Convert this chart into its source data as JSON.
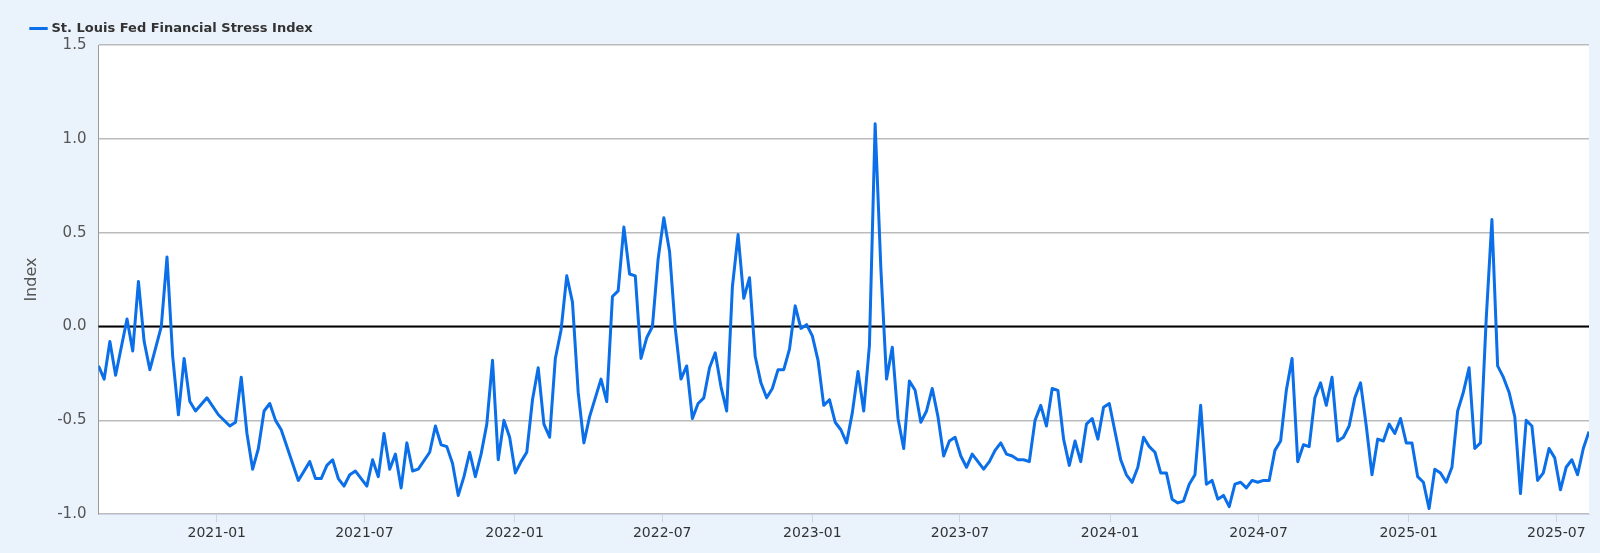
{
  "chart_data": {
    "type": "line",
    "ylabel": "Index",
    "xlim": [
      "2020-08-09",
      "2025-08-10"
    ],
    "xticks": [
      "2021-01",
      "2021-07",
      "2022-01",
      "2022-07",
      "2023-01",
      "2023-07",
      "2024-01",
      "2024-07",
      "2025-01",
      "2025-07"
    ],
    "ylim": [
      -1.0,
      1.5
    ],
    "yticks": [
      {
        "value": -1,
        "label": "-1.0"
      },
      -0.5,
      {
        "value": 0,
        "label": "0.0"
      },
      0.5,
      {
        "value": 1,
        "label": "1.0"
      },
      1.5
    ],
    "grid": "y",
    "legend": "top left",
    "marker": "none",
    "line_style": "solid",
    "ref_lines": [
      {
        "axis": "y",
        "value": 0,
        "color": "#000000"
      }
    ],
    "x": [
      "2020-08-09",
      "2020-08-16",
      "2020-08-23",
      "2020-08-30",
      "2020-09-13",
      "2020-09-20",
      "2020-09-27",
      "2020-10-04",
      "2020-10-11",
      "2020-10-25",
      "2020-11-01",
      "2020-11-08",
      "2020-11-15",
      "2020-11-22",
      "2020-11-29",
      "2020-12-06",
      "2020-12-20",
      "2021-01-03",
      "2021-01-17",
      "2021-01-24",
      "2021-01-31",
      "2021-02-07",
      "2021-02-14",
      "2021-02-21",
      "2021-02-28",
      "2021-03-07",
      "2021-03-14",
      "2021-03-21",
      "2021-04-11",
      "2021-04-25",
      "2021-05-02",
      "2021-05-09",
      "2021-05-16",
      "2021-05-23",
      "2021-05-30",
      "2021-06-06",
      "2021-06-13",
      "2021-06-20",
      "2021-07-04",
      "2021-07-11",
      "2021-07-18",
      "2021-07-25",
      "2021-08-01",
      "2021-08-08",
      "2021-08-15",
      "2021-08-22",
      "2021-08-29",
      "2021-09-05",
      "2021-09-19",
      "2021-09-26",
      "2021-10-03",
      "2021-10-10",
      "2021-10-17",
      "2021-10-24",
      "2021-10-31",
      "2021-11-07",
      "2021-11-14",
      "2021-11-21",
      "2021-11-28",
      "2021-12-05",
      "2021-12-12",
      "2021-12-19",
      "2021-12-26",
      "2022-01-02",
      "2022-01-09",
      "2022-01-16",
      "2022-01-23",
      "2022-01-30",
      "2022-02-06",
      "2022-02-13",
      "2022-02-20",
      "2022-02-27",
      "2022-03-06",
      "2022-03-13",
      "2022-03-20",
      "2022-03-27",
      "2022-04-03",
      "2022-04-17",
      "2022-04-24",
      "2022-05-01",
      "2022-05-08",
      "2022-05-15",
      "2022-05-22",
      "2022-05-29",
      "2022-06-05",
      "2022-06-12",
      "2022-06-19",
      "2022-06-26",
      "2022-07-03",
      "2022-07-10",
      "2022-07-17",
      "2022-07-24",
      "2022-07-31",
      "2022-08-07",
      "2022-08-14",
      "2022-08-21",
      "2022-08-28",
      "2022-09-04",
      "2022-09-11",
      "2022-09-18",
      "2022-09-25",
      "2022-10-02",
      "2022-10-09",
      "2022-10-16",
      "2022-10-23",
      "2022-10-30",
      "2022-11-06",
      "2022-11-13",
      "2022-11-20",
      "2022-11-27",
      "2022-12-04",
      "2022-12-11",
      "2022-12-18",
      "2022-12-25",
      "2023-01-01",
      "2023-01-08",
      "2023-01-15",
      "2023-01-22",
      "2023-01-29",
      "2023-02-05",
      "2023-02-12",
      "2023-02-19",
      "2023-02-26",
      "2023-03-05",
      "2023-03-12",
      "2023-03-19",
      "2023-03-26",
      "2023-04-02",
      "2023-04-09",
      "2023-04-16",
      "2023-04-23",
      "2023-04-30",
      "2023-05-07",
      "2023-05-14",
      "2023-05-21",
      "2023-05-28",
      "2023-06-04",
      "2023-06-11",
      "2023-06-18",
      "2023-06-25",
      "2023-07-02",
      "2023-07-09",
      "2023-07-16",
      "2023-07-23",
      "2023-07-30",
      "2023-08-06",
      "2023-08-13",
      "2023-08-20",
      "2023-08-27",
      "2023-09-03",
      "2023-09-10",
      "2023-09-17",
      "2023-09-24",
      "2023-10-01",
      "2023-10-08",
      "2023-10-15",
      "2023-10-22",
      "2023-10-29",
      "2023-11-05",
      "2023-11-12",
      "2023-11-19",
      "2023-11-26",
      "2023-12-03",
      "2023-12-10",
      "2023-12-17",
      "2023-12-24",
      "2023-12-31",
      "2024-01-14",
      "2024-01-21",
      "2024-01-28",
      "2024-02-04",
      "2024-02-11",
      "2024-02-18",
      "2024-02-25",
      "2024-03-03",
      "2024-03-10",
      "2024-03-17",
      "2024-03-24",
      "2024-03-31",
      "2024-04-07",
      "2024-04-14",
      "2024-04-21",
      "2024-04-28",
      "2024-05-05",
      "2024-05-12",
      "2024-05-19",
      "2024-05-26",
      "2024-06-02",
      "2024-06-09",
      "2024-06-16",
      "2024-06-23",
      "2024-06-30",
      "2024-07-07",
      "2024-07-14",
      "2024-07-21",
      "2024-07-28",
      "2024-08-04",
      "2024-08-11",
      "2024-08-18",
      "2024-08-25",
      "2024-09-01",
      "2024-09-08",
      "2024-09-15",
      "2024-09-22",
      "2024-09-29",
      "2024-10-06",
      "2024-10-13",
      "2024-10-20",
      "2024-10-27",
      "2024-11-03",
      "2024-11-10",
      "2024-11-17",
      "2024-11-24",
      "2024-12-01",
      "2024-12-08",
      "2024-12-15",
      "2024-12-22",
      "2024-12-29",
      "2025-01-05",
      "2025-01-12",
      "2025-01-19",
      "2025-01-26",
      "2025-02-02",
      "2025-02-09",
      "2025-02-16",
      "2025-02-23",
      "2025-03-02",
      "2025-03-09",
      "2025-03-16",
      "2025-03-23",
      "2025-03-30",
      "2025-04-06",
      "2025-04-13",
      "2025-04-20",
      "2025-04-27",
      "2025-05-04",
      "2025-05-11",
      "2025-05-18",
      "2025-05-25",
      "2025-06-01",
      "2025-06-08",
      "2025-06-15",
      "2025-06-22",
      "2025-06-29",
      "2025-07-06",
      "2025-07-13",
      "2025-07-20",
      "2025-07-27",
      "2025-08-03",
      "2025-08-10"
    ],
    "series": [
      {
        "name": "St. Louis Fed Financial Stress Index",
        "color": "#0a6fe8",
        "values": [
          -0.21,
          -0.28,
          -0.08,
          -0.26,
          0.04,
          -0.13,
          0.24,
          -0.08,
          -0.23,
          0.0,
          0.37,
          -0.16,
          -0.47,
          -0.17,
          -0.4,
          -0.45,
          -0.38,
          -0.47,
          -0.53,
          -0.51,
          -0.27,
          -0.57,
          -0.76,
          -0.65,
          -0.45,
          -0.41,
          -0.5,
          -0.55,
          -0.82,
          -0.72,
          -0.81,
          -0.81,
          -0.74,
          -0.71,
          -0.81,
          -0.85,
          -0.79,
          -0.77,
          -0.85,
          -0.71,
          -0.8,
          -0.57,
          -0.76,
          -0.68,
          -0.86,
          -0.62,
          -0.77,
          -0.76,
          -0.67,
          -0.53,
          -0.63,
          -0.64,
          -0.73,
          -0.9,
          -0.8,
          -0.67,
          -0.8,
          -0.68,
          -0.52,
          -0.18,
          -0.71,
          -0.5,
          -0.59,
          -0.78,
          -0.72,
          -0.67,
          -0.39,
          -0.22,
          -0.52,
          -0.59,
          -0.17,
          -0.02,
          0.27,
          0.13,
          -0.35,
          -0.62,
          -0.48,
          -0.28,
          -0.4,
          0.16,
          0.19,
          0.53,
          0.28,
          0.27,
          -0.17,
          -0.06,
          0.0,
          0.36,
          0.58,
          0.4,
          -0.01,
          -0.28,
          -0.21,
          -0.49,
          -0.41,
          -0.38,
          -0.22,
          -0.14,
          -0.32,
          -0.45,
          0.21,
          0.49,
          0.15,
          0.26,
          -0.16,
          -0.3,
          -0.38,
          -0.33,
          -0.23,
          -0.23,
          -0.12,
          0.11,
          -0.01,
          0.01,
          -0.05,
          -0.18,
          -0.42,
          -0.39,
          -0.51,
          -0.55,
          -0.62,
          -0.46,
          -0.24,
          -0.45,
          -0.1,
          1.08,
          0.31,
          -0.28,
          -0.11,
          -0.49,
          -0.65,
          -0.29,
          -0.34,
          -0.51,
          -0.45,
          -0.33,
          -0.48,
          -0.69,
          -0.61,
          -0.59,
          -0.69,
          -0.75,
          -0.68,
          -0.72,
          -0.76,
          -0.72,
          -0.66,
          -0.62,
          -0.68,
          -0.69,
          -0.71,
          -0.71,
          -0.72,
          -0.5,
          -0.42,
          -0.53,
          -0.33,
          -0.34,
          -0.6,
          -0.74,
          -0.61,
          -0.72,
          -0.52,
          -0.49,
          -0.6,
          -0.43,
          -0.41,
          -0.71,
          -0.79,
          -0.83,
          -0.75,
          -0.59,
          -0.64,
          -0.67,
          -0.78,
          -0.78,
          -0.92,
          -0.94,
          -0.93,
          -0.84,
          -0.79,
          -0.42,
          -0.84,
          -0.82,
          -0.92,
          -0.9,
          -0.96,
          -0.84,
          -0.83,
          -0.86,
          -0.82,
          -0.83,
          -0.82,
          -0.82,
          -0.66,
          -0.61,
          -0.34,
          -0.17,
          -0.72,
          -0.63,
          -0.64,
          -0.38,
          -0.3,
          -0.42,
          -0.27,
          -0.61,
          -0.59,
          -0.53,
          -0.38,
          -0.3,
          -0.53,
          -0.79,
          -0.6,
          -0.61,
          -0.52,
          -0.57,
          -0.49,
          -0.62,
          -0.62,
          -0.8,
          -0.83,
          -0.97,
          -0.76,
          -0.78,
          -0.83,
          -0.75,
          -0.45,
          -0.35,
          -0.22,
          -0.65,
          -0.62,
          0.04,
          0.57,
          -0.21,
          -0.27,
          -0.35,
          -0.48,
          -0.89,
          -0.5,
          -0.53,
          -0.82,
          -0.78,
          -0.65,
          -0.7,
          -0.87,
          -0.75,
          -0.71,
          -0.79,
          -0.65,
          -0.56
        ]
      }
    ]
  }
}
